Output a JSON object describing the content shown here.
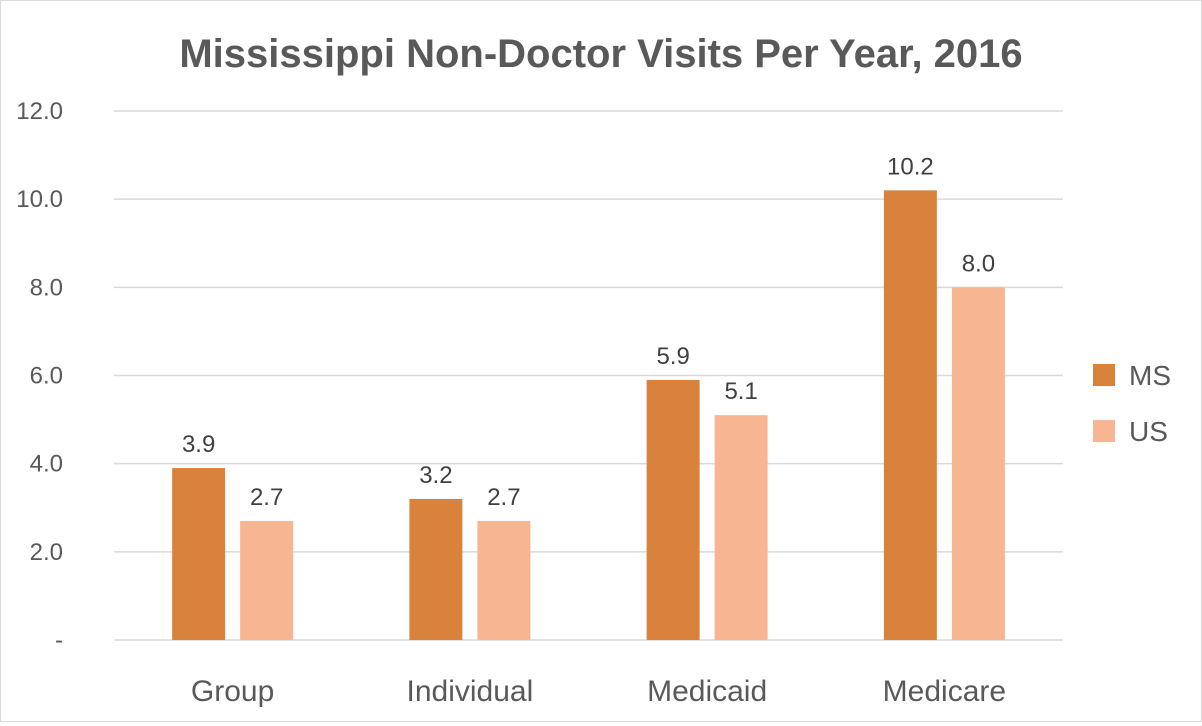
{
  "chart_data": {
    "type": "bar",
    "title": "Mississippi Non-Doctor Visits Per Year, 2016",
    "categories": [
      "Group",
      "Individual",
      "Medicaid",
      "Medicare"
    ],
    "series": [
      {
        "name": "MS",
        "color": "#d9823b",
        "values": [
          3.9,
          3.2,
          5.9,
          10.2
        ],
        "labels": [
          "3.9",
          "3.2",
          "5.9",
          "10.2"
        ]
      },
      {
        "name": "US",
        "color": "#f8b592",
        "values": [
          2.7,
          2.7,
          5.1,
          8.0
        ],
        "labels": [
          "2.7",
          "2.7",
          "5.1",
          "8.0"
        ]
      }
    ],
    "ylim": [
      0,
      12
    ],
    "yticks": [
      0,
      2,
      4,
      6,
      8,
      10,
      12
    ],
    "ytick_labels": [
      "-",
      "2.0",
      "4.0",
      "6.0",
      "8.0",
      "10.0",
      "12.0"
    ],
    "xlabel": "",
    "ylabel": "",
    "grid": true,
    "legend_position": "right"
  }
}
